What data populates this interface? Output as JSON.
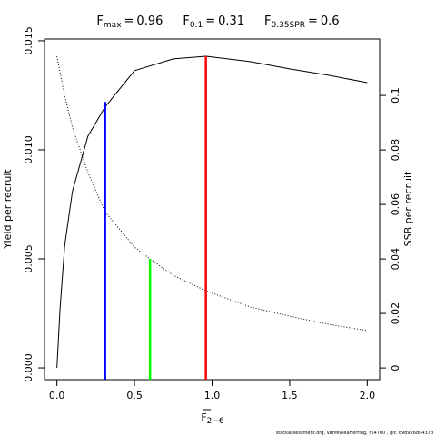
{
  "chart_data": {
    "type": "line",
    "title_parts": [
      {
        "symbol": "F",
        "subscript": "max",
        "relation": "=",
        "value": 0.96
      },
      {
        "symbol": "F",
        "subscript": "0.1",
        "relation": "=",
        "value": 0.31
      },
      {
        "symbol": "F",
        "subscript": "0.35SPR",
        "relation": "=",
        "value": 0.6
      }
    ],
    "x_label": "F",
    "x_label_subscript": "2−6",
    "y_label": "Yield per recruit",
    "y2_label": "SSB per recruit",
    "footer": "stockassessment.org, VarMNseaHerring, r14700 , git: 69d926d0437d",
    "xlim": [
      -0.08,
      2.08
    ],
    "ylim": [
      -0.00054,
      0.01508
    ],
    "y2lim": [
      -0.0043,
      0.1207
    ],
    "xticks": [
      {
        "value": 0,
        "label": "0.0"
      },
      {
        "value": 0.5,
        "label": "0.5"
      },
      {
        "value": 1,
        "label": "1.0"
      },
      {
        "value": 1.5,
        "label": "1.5"
      },
      {
        "value": 2,
        "label": "2.0"
      }
    ],
    "yticks": [
      {
        "value": 0,
        "label": "0.000"
      },
      {
        "value": 0.005,
        "label": "0.005"
      },
      {
        "value": 0.01,
        "label": "0.010"
      },
      {
        "value": 0.015,
        "label": "0.015"
      }
    ],
    "y2ticks": [
      0,
      0.02,
      0.04,
      0.06,
      0.08,
      0.1
    ],
    "series": [
      {
        "name": "Yield",
        "style": "solid",
        "color": "#000000",
        "axis": "y",
        "x": [
          0,
          0.02,
          0.05,
          0.1,
          0.2,
          0.31,
          0.5,
          0.75,
          0.96,
          1.25,
          1.5,
          1.75,
          2.0
        ],
        "values": [
          0,
          0.0027,
          0.0056,
          0.0081,
          0.01063,
          0.01196,
          0.01363,
          0.01417,
          0.01429,
          0.01404,
          0.01371,
          0.01342,
          0.01308
        ]
      },
      {
        "name": "SSB",
        "style": "dotted",
        "color": "#000000",
        "axis": "y2",
        "x": [
          0,
          0.05,
          0.1,
          0.2,
          0.31,
          0.5,
          0.6,
          0.75,
          0.96,
          1.25,
          1.5,
          1.75,
          2.0
        ],
        "values": [
          0.1143,
          0.1,
          0.0883,
          0.0717,
          0.0573,
          0.0443,
          0.04,
          0.034,
          0.0283,
          0.0223,
          0.019,
          0.016,
          0.0137
        ]
      },
      {
        "name": "F0.1",
        "style": "segment",
        "color": "#0000ff",
        "axis": "y",
        "x": [
          0.31
        ],
        "values": [
          0.0122
        ]
      },
      {
        "name": "F0.35SPR",
        "style": "segment",
        "color": "#00ff00",
        "axis": "y2",
        "x": [
          0.6
        ],
        "values": [
          0.04
        ]
      },
      {
        "name": "Fmax",
        "style": "segment",
        "color": "#ff0000",
        "axis": "y",
        "x": [
          0.96
        ],
        "values": [
          0.01429
        ]
      }
    ]
  }
}
